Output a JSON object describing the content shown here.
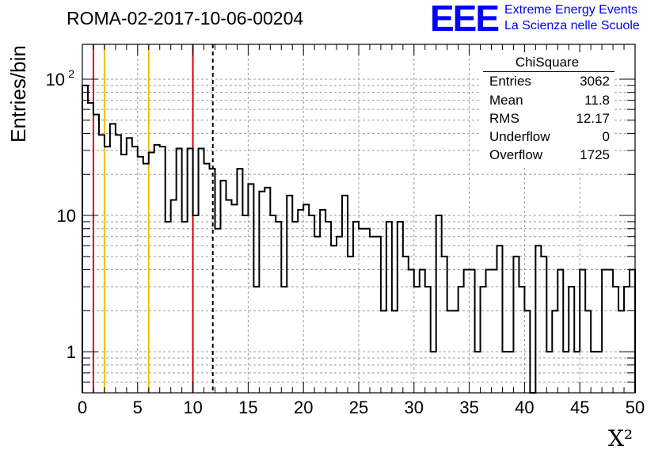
{
  "title": "ROMA-02-2017-10-06-00204",
  "brand": {
    "logo": "EEE",
    "line1": "Extreme Energy Events",
    "line2": "La Scienza nelle Scuole",
    "color": "#0000ff"
  },
  "stats_box": {
    "title": "ChiSquare",
    "rows": [
      {
        "label": "Entries",
        "value": "3062"
      },
      {
        "label": "Mean",
        "value": "11.8"
      },
      {
        "label": "RMS",
        "value": "12.17"
      },
      {
        "label": "Underflow",
        "value": "0"
      },
      {
        "label": "Overflow",
        "value": "1725"
      }
    ]
  },
  "chart_data": {
    "type": "histogram",
    "title": "ROMA-02-2017-10-06-00204",
    "xlabel": "X²",
    "ylabel": "Entries/bin",
    "xlim": [
      0,
      50
    ],
    "ylim": [
      0.5,
      180
    ],
    "yscale": "log",
    "grid": true,
    "bin_width": 0.5,
    "x_ticks": [
      "0",
      "5",
      "10",
      "15",
      "20",
      "25",
      "30",
      "35",
      "40",
      "45",
      "50"
    ],
    "y_ticks": [
      {
        "value": 1,
        "label": "1"
      },
      {
        "value": 10,
        "label": "10"
      },
      {
        "value": 100,
        "label": "10²"
      }
    ],
    "counts": [
      90,
      67,
      55,
      39,
      32,
      47,
      39,
      28,
      37,
      32,
      27,
      24,
      29,
      33,
      32,
      9,
      13,
      31,
      9,
      31,
      10,
      31,
      24,
      22,
      8,
      18,
      13,
      12,
      22,
      10,
      17,
      3,
      15,
      16,
      10,
      9,
      3,
      14,
      9,
      11,
      12,
      10,
      7,
      11,
      9,
      6,
      7,
      14,
      5,
      9,
      8,
      8,
      7,
      7,
      2,
      9,
      2,
      9,
      5,
      4,
      3,
      4,
      3,
      1,
      10,
      5,
      2,
      2,
      3,
      4,
      4,
      1,
      3,
      4,
      4,
      6,
      1,
      1,
      5,
      3,
      2,
      0,
      6,
      5,
      1,
      2,
      4,
      1,
      3,
      1,
      4,
      2,
      1,
      1,
      4,
      4,
      3,
      2,
      3,
      4
    ],
    "vertical_lines": [
      {
        "x": 1,
        "color": "#e00000",
        "style": "solid"
      },
      {
        "x": 2,
        "color": "#f0c000",
        "style": "solid"
      },
      {
        "x": 6,
        "color": "#f0c000",
        "style": "solid"
      },
      {
        "x": 10,
        "color": "#e00000",
        "style": "solid"
      },
      {
        "x": 11.8,
        "color": "#000000",
        "style": "dashed"
      }
    ]
  }
}
